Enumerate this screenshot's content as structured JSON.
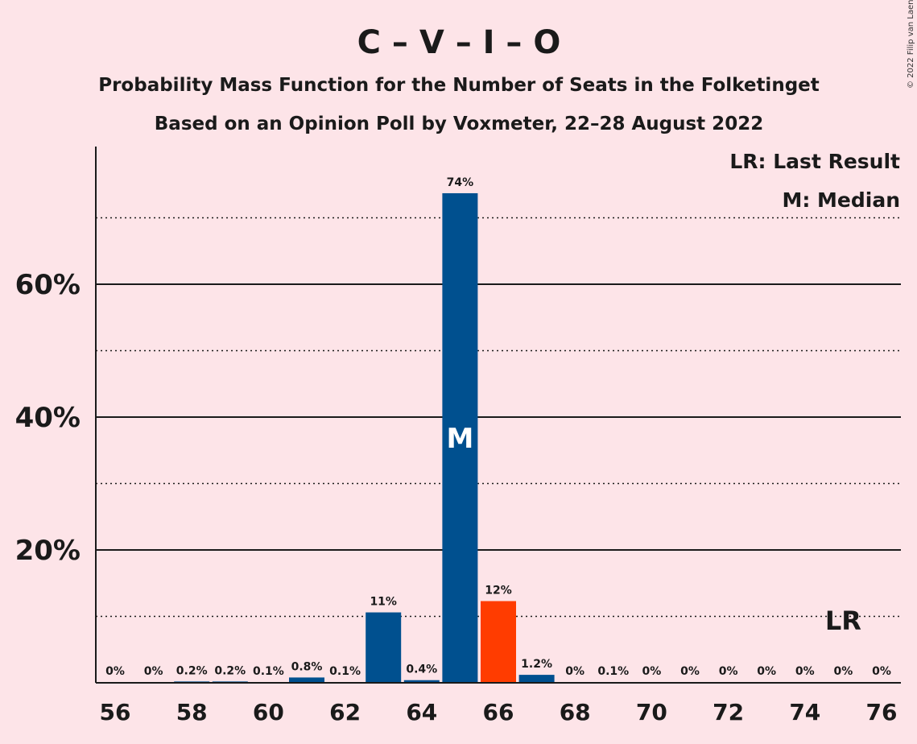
{
  "title": "C – V – I – O",
  "subtitle1": "Probability Mass Function for the Number of Seats in the Folketinget",
  "subtitle2": "Based on an Opinion Poll by Voxmeter, 22–28 August 2022",
  "copyright": "© 2022 Filip van Laenen",
  "legend": {
    "last_result": "LR: Last Result",
    "median": "M: Median"
  },
  "markers": {
    "median_letter": "M",
    "median_seat": 65,
    "last_result_letter": "LR",
    "last_result_seat": 75
  },
  "colors": {
    "background": "#fde4e8",
    "bar": "#00508f",
    "last_result_bar": "#ff3c00",
    "axis": "#1a1a1a"
  },
  "chart_data": {
    "type": "bar",
    "x": [
      56,
      57,
      58,
      59,
      60,
      61,
      62,
      63,
      64,
      65,
      66,
      67,
      68,
      69,
      70,
      71,
      72,
      73,
      74,
      75,
      76
    ],
    "values": [
      0,
      0,
      0.2,
      0.2,
      0.1,
      0.8,
      0.1,
      10.6,
      0.4,
      73.7,
      12.3,
      1.2,
      0,
      0.1,
      0,
      0,
      0,
      0,
      0,
      0,
      0
    ],
    "labels": [
      "0%",
      "0%",
      "0.2%",
      "0.2%",
      "0.1%",
      "0.8%",
      "0.1%",
      "11%",
      "0.4%",
      "74%",
      "12%",
      "1.2%",
      "0%",
      "0.1%",
      "0%",
      "0%",
      "0%",
      "0%",
      "0%",
      "0%",
      "0%"
    ],
    "highlight_seat": 66,
    "x_ticks": [
      56,
      58,
      60,
      62,
      64,
      66,
      68,
      70,
      72,
      74,
      76
    ],
    "y_ticks_labeled": [
      20,
      40,
      60
    ],
    "y_tick_labels": [
      "20%",
      "40%",
      "60%"
    ],
    "y_gridlines_dotted": [
      10,
      30,
      50,
      70
    ],
    "ylim": [
      0,
      80
    ],
    "unit": "%",
    "grid": true,
    "legend_position": "top-right"
  }
}
